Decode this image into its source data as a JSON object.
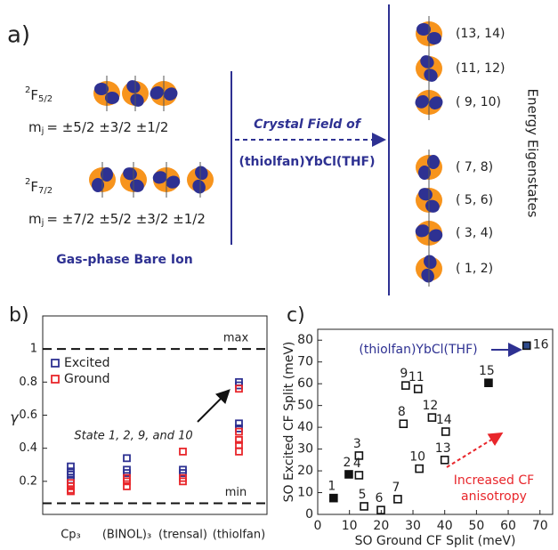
{
  "diagram": {
    "label": "a)",
    "terms": [
      {
        "sup": "2",
        "main": "F",
        "sub": "5/2",
        "mj_main": "m",
        "mj_sub": "j",
        "mj_values": "= ±5/2  ±3/2  ±1/2"
      },
      {
        "sup": "2",
        "main": "F",
        "sub": "7/2",
        "mj_main": "m",
        "mj_sub": "j",
        "mj_values": "= ±7/2  ±5/2  ±3/2  ±1/2"
      }
    ],
    "gas_label": "Gas-phase Bare Ion",
    "crystal_field": "Crystal Field of",
    "complex": "(thiolfan)YbCl(THF)",
    "eigen_label": "Energy Eigenstates",
    "states": [
      "(13, 14)",
      "(11, 12)",
      "( 9, 10)",
      "( 7,  8)",
      "( 5,  6)",
      "( 3,  4)",
      "( 1,  2)"
    ]
  },
  "chart_data": [
    {
      "type": "category_scatter",
      "label": "b)",
      "y_label": "γ",
      "categories": [
        "Cp₃",
        "(BINOL)₃",
        "(trensal)",
        "(thiolfan)"
      ],
      "ylim": [
        0,
        1.2
      ],
      "yticks": [
        0.2,
        0.4,
        0.6,
        0.8,
        1
      ],
      "reference_lines": [
        {
          "value": 1,
          "label": "max"
        },
        {
          "value": 0.067,
          "label": "min"
        }
      ],
      "legend": "top-left",
      "annotation": "State 1, 2, 9, and 10",
      "series": [
        {
          "name": "Excited",
          "color": "#2e3192",
          "x": [
            "Cp₃",
            "Cp₃",
            "Cp₃",
            "Cp₃",
            "(BINOL)₃",
            "(BINOL)₃",
            "(BINOL)₃",
            "(trensal)",
            "(trensal)",
            "(thiolfan)",
            "(thiolfan)",
            "(thiolfan)",
            "(thiolfan)"
          ],
          "values": [
            0.29,
            0.26,
            0.24,
            0.21,
            0.34,
            0.27,
            0.25,
            0.27,
            0.25,
            0.8,
            0.78,
            0.55,
            0.52
          ]
        },
        {
          "name": "Ground",
          "color": "#e8262b",
          "x": [
            "Cp₃",
            "Cp₃",
            "Cp₃",
            "Cp₃",
            "(BINOL)₃",
            "(BINOL)₃",
            "(BINOL)₃",
            "(trensal)",
            "(trensal)",
            "(trensal)",
            "(thiolfan)",
            "(thiolfan)",
            "(thiolfan)",
            "(thiolfan)",
            "(thiolfan)"
          ],
          "values": [
            0.19,
            0.17,
            0.15,
            0.14,
            0.22,
            0.2,
            0.17,
            0.38,
            0.22,
            0.2,
            0.76,
            0.5,
            0.45,
            0.42,
            0.38
          ]
        }
      ]
    },
    {
      "type": "scatter",
      "label": "c)",
      "x_label": "SO Ground CF Split (meV)",
      "y_label": "SO Excited CF Split (meV)",
      "xlim": [
        0,
        74
      ],
      "xticks": [
        0,
        10,
        20,
        30,
        40,
        50,
        60,
        70
      ],
      "ylim": [
        0,
        85
      ],
      "yticks": [
        0,
        10,
        20,
        30,
        40,
        50,
        60,
        70,
        80
      ],
      "annotation": "(thiolfan)YbCl(THF)",
      "trend_label": [
        "Increased CF",
        "anisotropy"
      ],
      "series": [
        {
          "x": [
            5,
            9.8,
            13,
            13,
            14.6,
            19.9,
            25.2,
            27,
            27.7,
            32,
            31.6,
            36,
            40,
            40.3,
            53.8,
            65.8
          ],
          "values": [
            7.5,
            18.4,
            27,
            18,
            3.7,
            2,
            7,
            41.6,
            59.2,
            21,
            57.6,
            44.5,
            25,
            38,
            60.4,
            77.5
          ],
          "point_labels": [
            "1",
            "2",
            "3",
            "4",
            "5",
            "6",
            "7",
            "8",
            "9",
            "10",
            "11",
            "12",
            "13",
            "14",
            "15",
            "16"
          ],
          "colors": [
            "#111111",
            "#111111",
            "none",
            "none",
            "none",
            "none",
            "none",
            "none",
            "none",
            "none",
            "none",
            "none",
            "none",
            "none",
            "#111111",
            "#2e4a8c"
          ]
        }
      ]
    }
  ]
}
